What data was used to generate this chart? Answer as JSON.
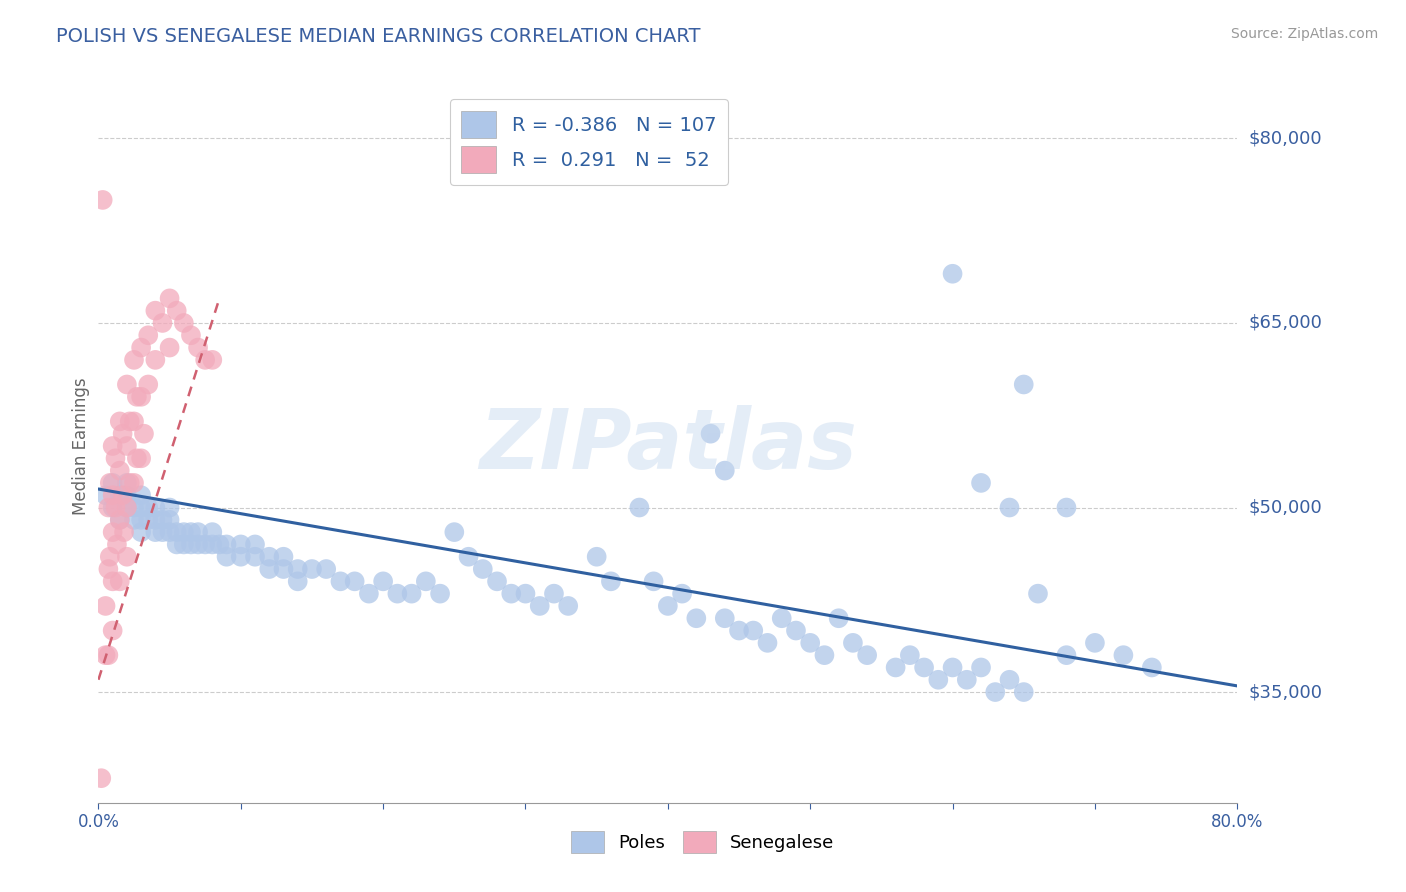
{
  "title": "POLISH VS SENEGALESE MEDIAN EARNINGS CORRELATION CHART",
  "source": "Source: ZipAtlas.com",
  "ylabel": "Median Earnings",
  "xlim": [
    0.0,
    0.8
  ],
  "ylim": [
    26000,
    84000
  ],
  "yticks": [
    35000,
    50000,
    65000,
    80000
  ],
  "ytick_labels": [
    "$35,000",
    "$50,000",
    "$65,000",
    "$80,000"
  ],
  "xticks": [
    0.0,
    0.1,
    0.2,
    0.3,
    0.4,
    0.5,
    0.6,
    0.7,
    0.8
  ],
  "xtick_labels_show": [
    "0.0%",
    "80.0%"
  ],
  "blue_R": -0.386,
  "blue_N": 107,
  "pink_R": 0.291,
  "pink_N": 52,
  "blue_color": "#aec6e8",
  "pink_color": "#f2aabb",
  "blue_line_color": "#3060a0",
  "pink_line_color": "#d06070",
  "title_color": "#3a5fa0",
  "axis_color": "#3a5fa0",
  "tick_color": "#3a5fa0",
  "grid_color": "#cccccc",
  "watermark": "ZIPatlas",
  "watermark_color": "#c5d8ee",
  "blue_trend_x0": 0.0,
  "blue_trend_y0": 51500,
  "blue_trend_x1": 0.8,
  "blue_trend_y1": 35500,
  "pink_trend_x0": 0.0,
  "pink_trend_y0": 36000,
  "pink_trend_x1": 0.085,
  "pink_trend_y1": 67000,
  "blue_scatter_x": [
    0.005,
    0.01,
    0.01,
    0.015,
    0.015,
    0.02,
    0.02,
    0.02,
    0.025,
    0.025,
    0.03,
    0.03,
    0.03,
    0.03,
    0.035,
    0.035,
    0.04,
    0.04,
    0.04,
    0.045,
    0.045,
    0.05,
    0.05,
    0.05,
    0.055,
    0.055,
    0.06,
    0.06,
    0.065,
    0.065,
    0.07,
    0.07,
    0.075,
    0.08,
    0.08,
    0.085,
    0.09,
    0.09,
    0.1,
    0.1,
    0.11,
    0.11,
    0.12,
    0.12,
    0.13,
    0.13,
    0.14,
    0.14,
    0.15,
    0.16,
    0.17,
    0.18,
    0.19,
    0.2,
    0.21,
    0.22,
    0.23,
    0.24,
    0.25,
    0.26,
    0.27,
    0.28,
    0.29,
    0.3,
    0.31,
    0.32,
    0.33,
    0.35,
    0.36,
    0.38,
    0.39,
    0.4,
    0.41,
    0.42,
    0.44,
    0.45,
    0.46,
    0.47,
    0.48,
    0.49,
    0.5,
    0.51,
    0.52,
    0.53,
    0.54,
    0.56,
    0.57,
    0.58,
    0.59,
    0.6,
    0.61,
    0.62,
    0.63,
    0.64,
    0.65,
    0.66,
    0.68,
    0.7,
    0.72,
    0.74,
    0.43,
    0.44,
    0.62,
    0.64,
    0.6,
    0.65,
    0.68
  ],
  "blue_scatter_y": [
    51000,
    52000,
    50000,
    51000,
    49000,
    51000,
    50000,
    52000,
    50000,
    49000,
    50000,
    48000,
    51000,
    49000,
    49000,
    50000,
    49000,
    48000,
    50000,
    48000,
    49000,
    49000,
    48000,
    50000,
    48000,
    47000,
    48000,
    47000,
    48000,
    47000,
    47000,
    48000,
    47000,
    47000,
    48000,
    47000,
    47000,
    46000,
    47000,
    46000,
    46000,
    47000,
    46000,
    45000,
    45000,
    46000,
    45000,
    44000,
    45000,
    45000,
    44000,
    44000,
    43000,
    44000,
    43000,
    43000,
    44000,
    43000,
    48000,
    46000,
    45000,
    44000,
    43000,
    43000,
    42000,
    43000,
    42000,
    46000,
    44000,
    50000,
    44000,
    42000,
    43000,
    41000,
    41000,
    40000,
    40000,
    39000,
    41000,
    40000,
    39000,
    38000,
    41000,
    39000,
    38000,
    37000,
    38000,
    37000,
    36000,
    37000,
    36000,
    37000,
    35000,
    36000,
    35000,
    43000,
    38000,
    39000,
    38000,
    37000,
    56000,
    53000,
    52000,
    50000,
    69000,
    60000,
    50000
  ],
  "pink_scatter_x": [
    0.002,
    0.005,
    0.005,
    0.007,
    0.007,
    0.007,
    0.008,
    0.008,
    0.01,
    0.01,
    0.01,
    0.01,
    0.01,
    0.012,
    0.012,
    0.013,
    0.015,
    0.015,
    0.015,
    0.015,
    0.017,
    0.017,
    0.018,
    0.02,
    0.02,
    0.02,
    0.02,
    0.022,
    0.022,
    0.025,
    0.025,
    0.025,
    0.027,
    0.027,
    0.03,
    0.03,
    0.03,
    0.032,
    0.035,
    0.035,
    0.04,
    0.04,
    0.045,
    0.05,
    0.05,
    0.055,
    0.06,
    0.065,
    0.07,
    0.075,
    0.08,
    0.003
  ],
  "pink_scatter_y": [
    28000,
    42000,
    38000,
    50000,
    45000,
    38000,
    52000,
    46000,
    55000,
    51000,
    48000,
    44000,
    40000,
    54000,
    50000,
    47000,
    57000,
    53000,
    49000,
    44000,
    56000,
    51000,
    48000,
    60000,
    55000,
    50000,
    46000,
    57000,
    52000,
    62000,
    57000,
    52000,
    59000,
    54000,
    63000,
    59000,
    54000,
    56000,
    64000,
    60000,
    66000,
    62000,
    65000,
    67000,
    63000,
    66000,
    65000,
    64000,
    63000,
    62000,
    62000,
    75000
  ]
}
